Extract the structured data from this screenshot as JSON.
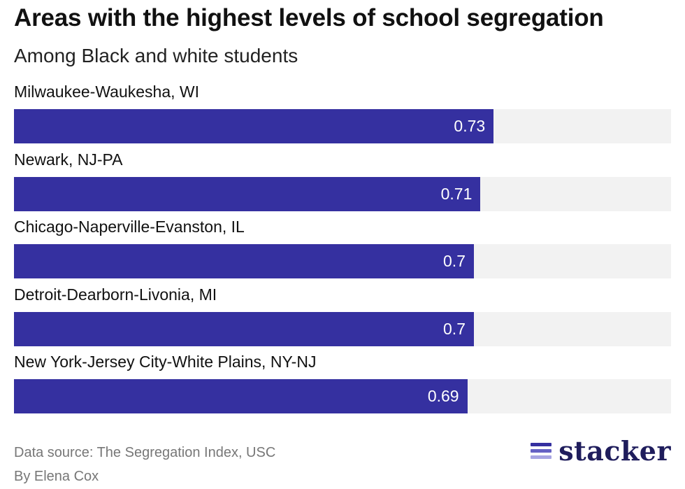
{
  "chart_data": {
    "type": "bar",
    "orientation": "horizontal",
    "title": "Areas with the highest levels of school segregation",
    "subtitle": "Among Black and white students",
    "categories": [
      "Milwaukee-Waukesha, WI",
      "Newark, NJ-PA",
      "Chicago-Naperville-Evanston, IL",
      "Detroit-Dearborn-Livonia, MI",
      "New York-Jersey City-White Plains, NY-NJ"
    ],
    "values": [
      0.73,
      0.71,
      0.7,
      0.7,
      0.69
    ],
    "value_labels": [
      "0.73",
      "0.71",
      "0.7",
      "0.7",
      "0.69"
    ],
    "xlim": [
      0,
      1
    ],
    "grid": false,
    "legend": "none"
  },
  "footer": {
    "source": "Data source: The Segregation Index, USC",
    "author": "By Elena Cox"
  },
  "logo": {
    "text": "stacker"
  },
  "colors": {
    "bar": "#3530a0",
    "track": "#f2f2f2",
    "logo_text": "#1f1d5c",
    "logo_stripe_1": "#3530a0",
    "logo_stripe_2": "#6561c4",
    "logo_stripe_3": "#a7a4e2"
  }
}
